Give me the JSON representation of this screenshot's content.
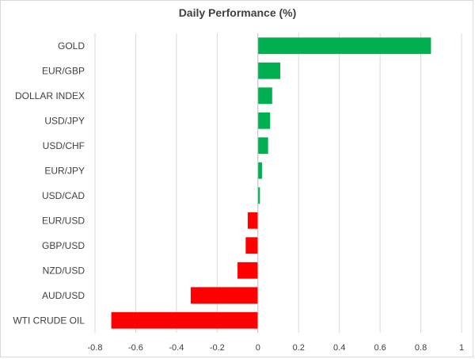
{
  "chart_data": {
    "type": "bar",
    "orientation": "horizontal",
    "title": "Daily Performance (%)",
    "xlabel": "",
    "ylabel": "",
    "categories": [
      "GOLD",
      "EUR/GBP",
      "DOLLAR INDEX",
      "USD/JPY",
      "USD/CHF",
      "EUR/JPY",
      "USD/CAD",
      "EUR/USD",
      "GBP/USD",
      "NZD/USD",
      "AUD/USD",
      "WTI CRUDE OIL"
    ],
    "values": [
      0.85,
      0.11,
      0.07,
      0.06,
      0.05,
      0.02,
      0.01,
      -0.05,
      -0.06,
      -0.1,
      -0.33,
      -0.72
    ],
    "xlim": [
      -0.8,
      1
    ],
    "xticks": [
      -0.8,
      -0.6,
      -0.4,
      -0.2,
      0,
      0.2,
      0.4,
      0.6,
      0.8,
      1
    ],
    "xtick_labels": [
      "-0.8",
      "-0.6",
      "-0.4",
      "-0.2",
      "0",
      "0.2",
      "0.4",
      "0.6",
      "0.8",
      "1"
    ],
    "grid": true,
    "legend": "none",
    "colors": {
      "positive": "#00b050",
      "negative": "#ff0000",
      "grid": "#d9d9d9",
      "axis": "#bfbfbf"
    }
  }
}
